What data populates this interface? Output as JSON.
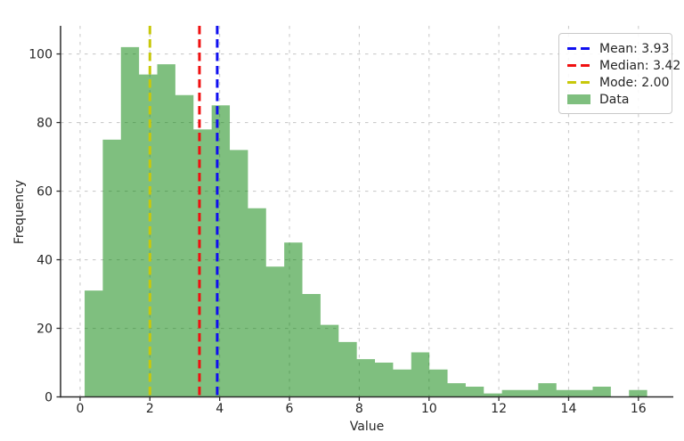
{
  "figure": {
    "background": "#ffffff",
    "text_color": "#262626",
    "spine_color": "#2b2b2b",
    "grid_color": "#cccccc"
  },
  "chart_data": {
    "type": "bar",
    "subtype": "histogram",
    "title": "",
    "xlabel": "Value",
    "ylabel": "Frequency",
    "xlim": [
      -0.56,
      17.0
    ],
    "ylim": [
      0,
      108.2
    ],
    "xticks": [
      0,
      2,
      4,
      6,
      8,
      10,
      12,
      14,
      16
    ],
    "yticks": [
      0,
      20,
      40,
      60,
      80,
      100
    ],
    "grid": true,
    "grid_style": "dashed",
    "legend_position": "upper right",
    "bin_start": 0.13,
    "bin_width": 0.52,
    "bin_edges": [
      0.13,
      0.65,
      1.17,
      1.69,
      2.21,
      2.73,
      3.25,
      3.77,
      4.29,
      4.81,
      5.33,
      5.85,
      6.37,
      6.89,
      7.41,
      7.93,
      8.45,
      8.97,
      9.49,
      10.01,
      10.53,
      11.05,
      11.57,
      12.09,
      12.61,
      13.13,
      13.65,
      14.17,
      14.69,
      15.21,
      15.73,
      16.25
    ],
    "frequencies": [
      31,
      75,
      102,
      94,
      97,
      88,
      78,
      85,
      72,
      55,
      38,
      45,
      30,
      21,
      16,
      11,
      10,
      8,
      13,
      8,
      4,
      3,
      1,
      2,
      2,
      4,
      2,
      2,
      3,
      0,
      2
    ],
    "bar_color": "#008000",
    "bar_alpha": 0.5,
    "bar_color_on_white": "#80c080",
    "lines": [
      {
        "name": "mean",
        "value": 3.93,
        "color": "#0f0ff0",
        "style": "dashed",
        "label": "Mean: 3.93"
      },
      {
        "name": "median",
        "value": 3.42,
        "color": "#f01010",
        "style": "dashed",
        "label": "Median: 3.42"
      },
      {
        "name": "mode",
        "value": 2.0,
        "color": "#c8c80a",
        "style": "dashed",
        "label": "Mode: 2.00"
      }
    ],
    "legend_entries": [
      {
        "label": "Mean: 3.93",
        "color": "#0f0ff0",
        "swatch": "dashed-line"
      },
      {
        "label": "Median: 3.42",
        "color": "#f01010",
        "swatch": "dashed-line"
      },
      {
        "label": "Mode: 2.00",
        "color": "#c8c80a",
        "swatch": "dashed-line"
      },
      {
        "label": "Data",
        "color": "rgba(0,128,0,0.5)",
        "swatch": "patch"
      }
    ]
  }
}
